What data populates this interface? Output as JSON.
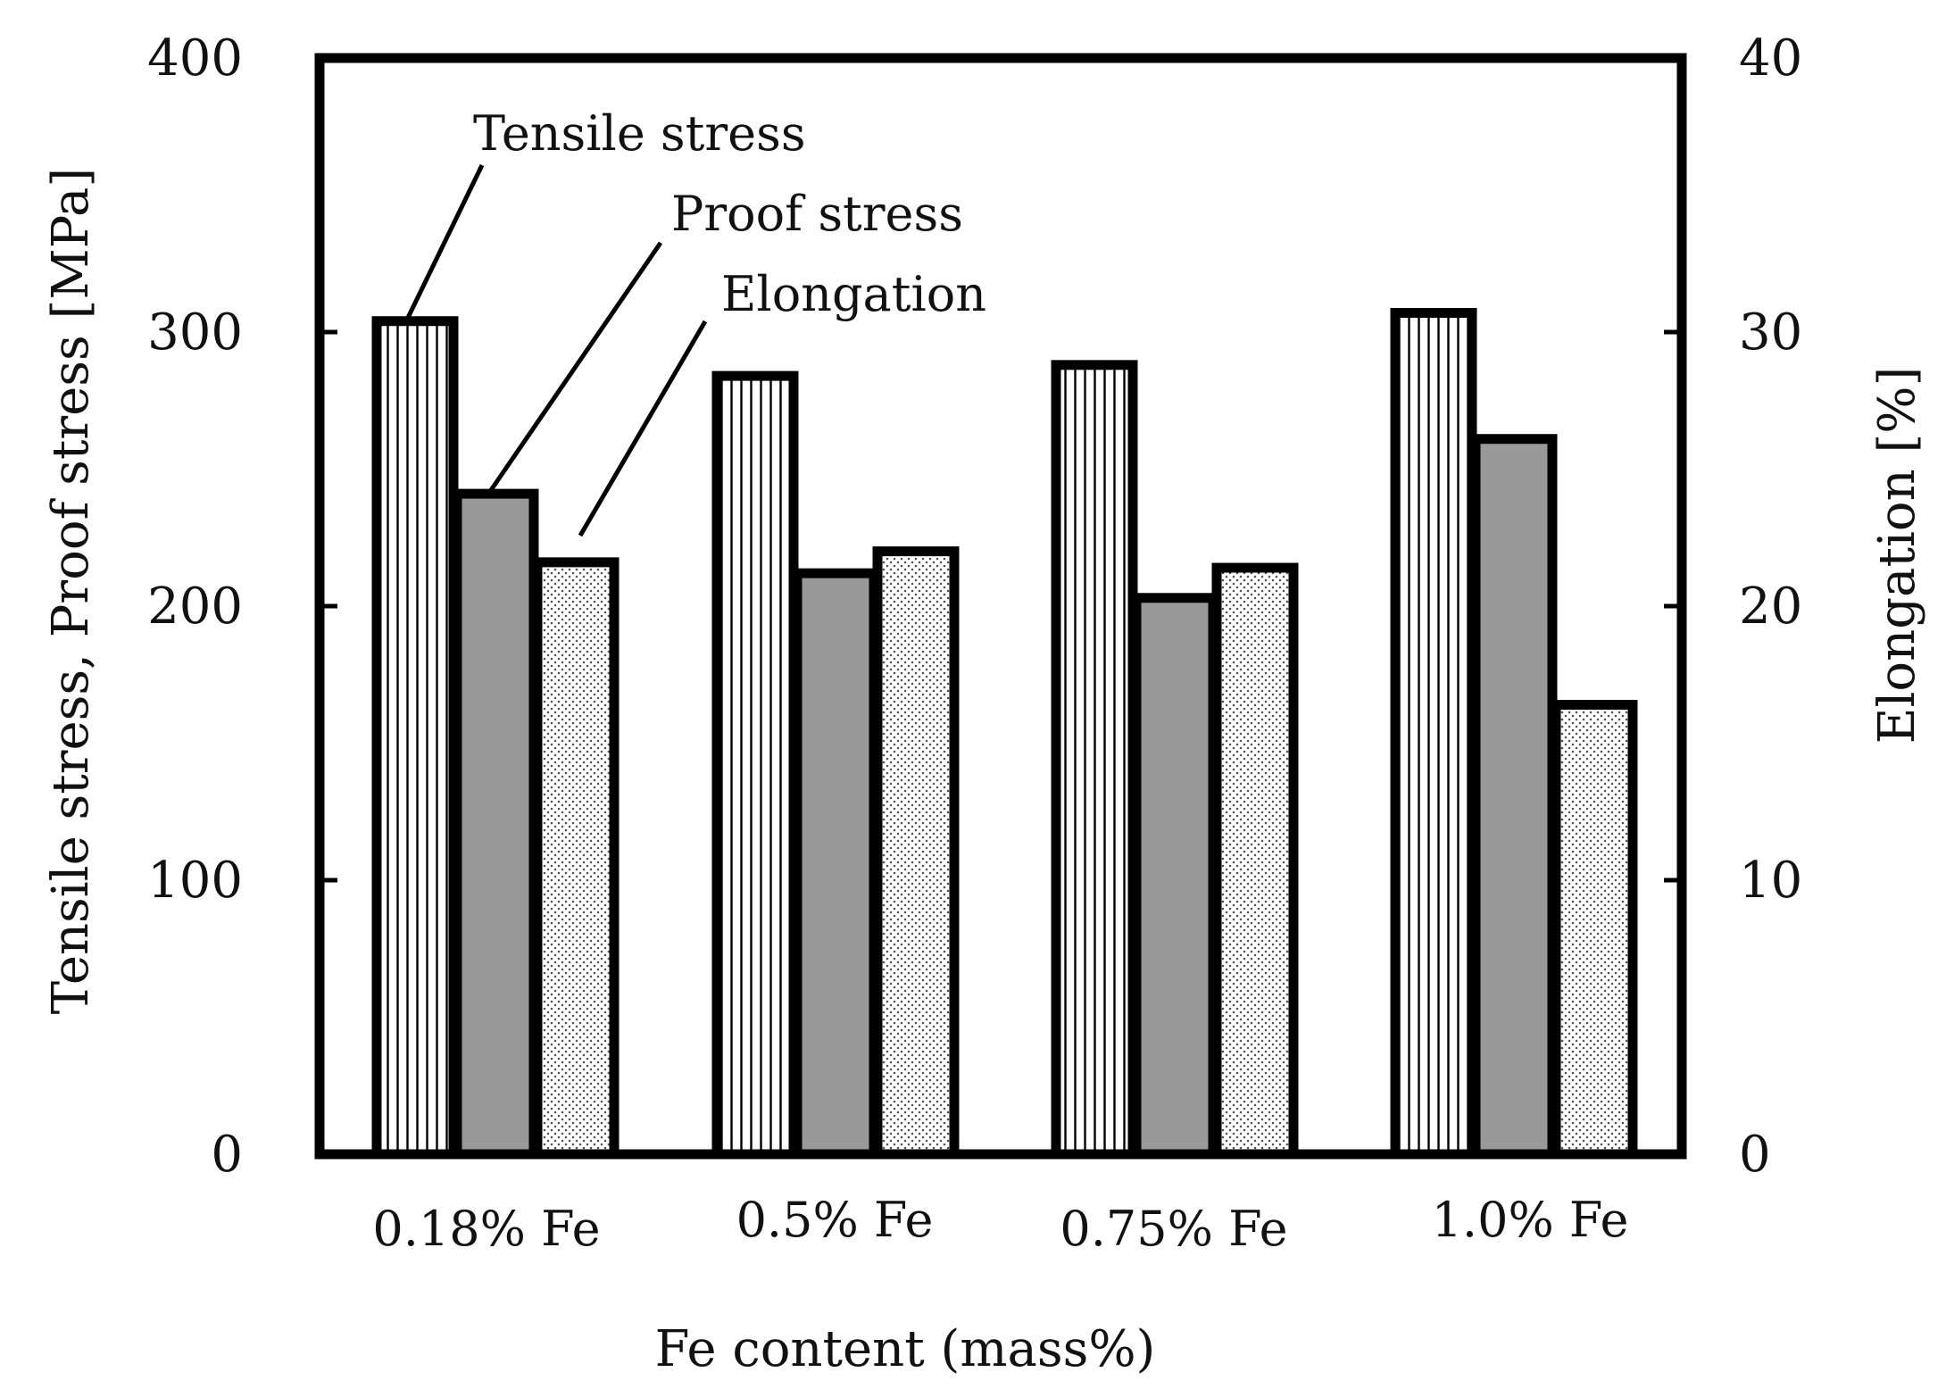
{
  "chart_data": {
    "type": "bar",
    "title": "",
    "xlabel": "Fe content (mass%)",
    "ylabel": "Tensile stress, Proof stress [MPa]",
    "y2label": "Elongation [%]",
    "categories": [
      "0.18% Fe",
      "0.5% Fe",
      "0.75% Fe",
      "1.0% Fe"
    ],
    "ylim": [
      0,
      400
    ],
    "y2lim": [
      0,
      40
    ],
    "yticks": [
      "0",
      "100",
      "200",
      "300",
      "400"
    ],
    "y2ticks": [
      "0",
      "10",
      "20",
      "30",
      "40"
    ],
    "grid": false,
    "series": [
      {
        "name": "Tensile stress",
        "axis": "left",
        "pattern": "vertical-stripes",
        "values": [
          304,
          284,
          288,
          307
        ]
      },
      {
        "name": "Proof stress",
        "axis": "left",
        "pattern": "gray",
        "values": [
          241,
          212,
          203,
          261
        ]
      },
      {
        "name": "Elongation",
        "axis": "right",
        "pattern": "dots",
        "values": [
          21.6,
          22.0,
          21.4,
          16.4
        ]
      }
    ],
    "annotations": [
      "Tensile stress",
      "Proof stress",
      "Elongation"
    ],
    "colors": {
      "gray_fill": "#999999",
      "outline": "#000000"
    }
  }
}
